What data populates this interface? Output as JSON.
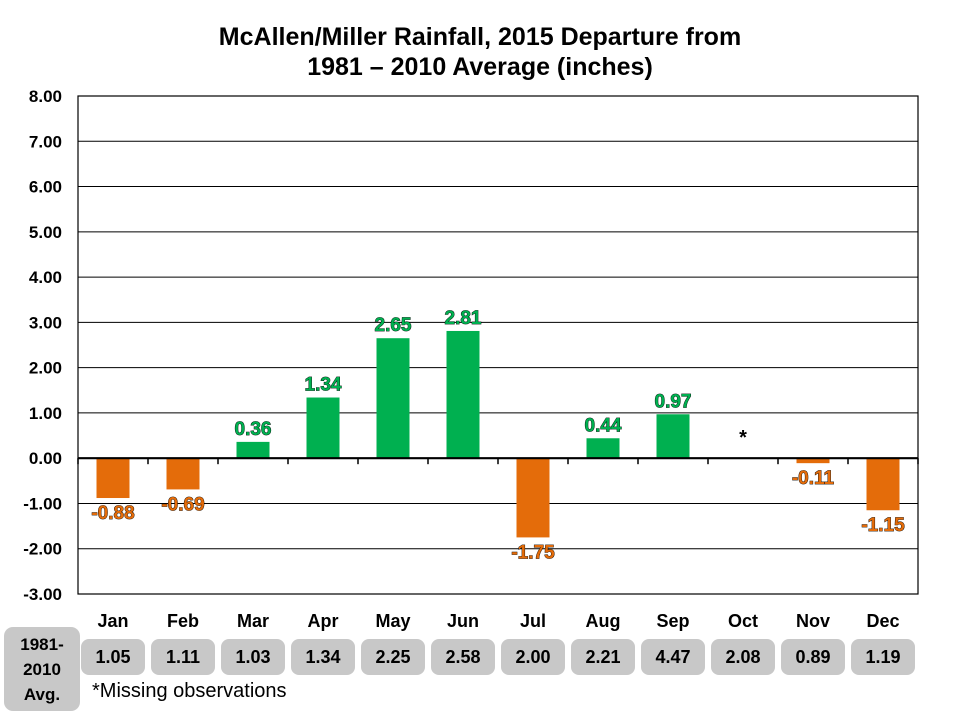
{
  "chart_data": {
    "type": "bar",
    "title": [
      "McAllen/Miller Rainfall, 2015 Departure from",
      "1981 – 2010 Average (inches)"
    ],
    "categories": [
      "Jan",
      "Feb",
      "Mar",
      "Apr",
      "May",
      "Jun",
      "Jul",
      "Aug",
      "Sep",
      "Oct",
      "Nov",
      "Dec"
    ],
    "values": [
      -0.88,
      -0.69,
      0.36,
      1.34,
      2.65,
      2.81,
      -1.75,
      0.44,
      0.97,
      null,
      -0.11,
      -1.15
    ],
    "data_labels": [
      "-0.88",
      "-0.69",
      "0.36",
      "1.34",
      "2.65",
      "2.81",
      "-1.75",
      "0.44",
      "0.97",
      "*",
      "-0.11",
      "-1.15"
    ],
    "ylim": [
      -3,
      8
    ],
    "yticks": [
      "8.00",
      "7.00",
      "6.00",
      "5.00",
      "4.00",
      "3.00",
      "2.00",
      "1.00",
      "0.00",
      "-1.00",
      "-2.00",
      "-3.00"
    ],
    "grid": true,
    "colors": {
      "positive": "#00b050",
      "negative": "#e46c0a"
    }
  },
  "avg_row": {
    "label_lines": [
      "1981-",
      "2010",
      "Avg."
    ],
    "values": [
      "1.05",
      "1.11",
      "1.03",
      "1.34",
      "2.25",
      "2.58",
      "2.00",
      "2.21",
      "4.47",
      "2.08",
      "0.89",
      "1.19"
    ]
  },
  "footnote": "*Missing observations"
}
